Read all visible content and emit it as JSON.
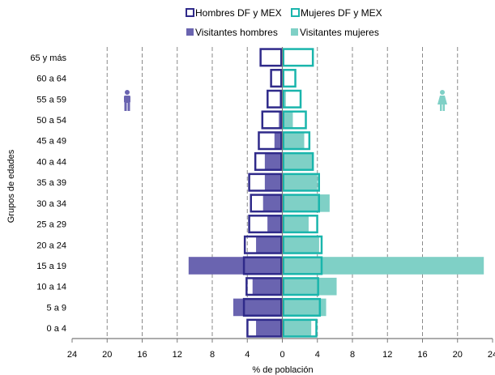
{
  "chart_data": {
    "type": "bar",
    "subtype": "population-pyramid",
    "xlabel": "% de población",
    "ylabel": "Grupos de edades",
    "xlim": [
      -24,
      24
    ],
    "x_ticks": [
      -24,
      -20,
      -16,
      -12,
      -8,
      -4,
      0,
      4,
      8,
      12,
      16,
      20,
      24
    ],
    "x_tick_labels": [
      "24",
      "20",
      "16",
      "12",
      "8",
      "4",
      "0",
      "4",
      "8",
      "12",
      "16",
      "20",
      "24"
    ],
    "grid": "vertical-dashed",
    "legend_position": "top",
    "categories": [
      "0 a 4",
      "5 a 9",
      "10 a 14",
      "15 a 19",
      "20 a 24",
      "25 a 29",
      "30 a 34",
      "35 a 39",
      "40 a 44",
      "45 a 49",
      "50 a 54",
      "55 a 59",
      "60 a 64",
      "65 y más"
    ],
    "series": [
      {
        "name": "Visitantes hombres",
        "side": "left",
        "style": "filled",
        "color": "#6a64b0",
        "values": [
          3.0,
          5.6,
          3.4,
          10.7,
          3.0,
          1.7,
          2.2,
          2.0,
          2.0,
          0.9,
          0.4,
          0.3,
          0.2,
          0.2
        ]
      },
      {
        "name": "Visitantes mujeres",
        "side": "right",
        "style": "filled",
        "color": "#7fd0c6",
        "values": [
          3.3,
          5.0,
          6.2,
          23.0,
          4.2,
          3.0,
          5.4,
          4.0,
          3.5,
          2.5,
          1.2,
          0.4,
          0.2,
          0.2
        ]
      },
      {
        "name": "Hombres DF y MEX",
        "side": "left",
        "style": "outline",
        "color": "#2f2a8a",
        "values": [
          4.1,
          4.5,
          4.2,
          4.5,
          4.4,
          3.9,
          3.7,
          3.9,
          3.2,
          2.8,
          2.4,
          1.8,
          1.4,
          2.6
        ]
      },
      {
        "name": "Mujeres DF y MEX",
        "side": "right",
        "style": "outline",
        "color": "#1ab5ac",
        "values": [
          4.0,
          4.4,
          4.2,
          4.6,
          4.6,
          4.1,
          4.3,
          4.3,
          3.6,
          3.2,
          2.8,
          2.2,
          1.6,
          3.6
        ]
      }
    ],
    "icons": {
      "left": "male-figure-icon",
      "right": "female-figure-icon"
    }
  }
}
